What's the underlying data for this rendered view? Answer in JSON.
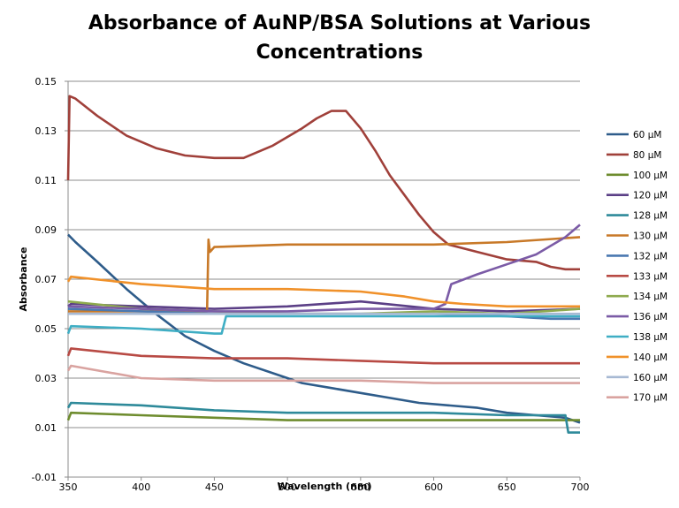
{
  "chart_data": {
    "type": "line",
    "title": [
      "Absorbance of AuNP/BSA Solutions at Various",
      "Concentrations"
    ],
    "xlabel": "Wavelength (nm)",
    "ylabel": "Absorbance",
    "xlim": [
      350,
      700
    ],
    "ylim": [
      -0.01,
      0.15
    ],
    "xticks": [
      350,
      400,
      450,
      500,
      550,
      600,
      650,
      700
    ],
    "yticks": [
      -0.01,
      0.01,
      0.03,
      0.05,
      0.07,
      0.09,
      0.11,
      0.13,
      0.15
    ],
    "ytick_labels": [
      "-0.01",
      "0.01",
      "0.03",
      "0.05",
      "0.07",
      "0.09",
      "0.11",
      "0.13",
      "0.15"
    ],
    "grid": "horizontal",
    "legend_position": "right",
    "series": [
      {
        "name": "60 µM",
        "color": "#2E5C8A",
        "x": [
          350,
          355,
          370,
          390,
          410,
          430,
          450,
          470,
          490,
          510,
          530,
          550,
          570,
          590,
          610,
          630,
          650,
          670,
          690,
          700
        ],
        "y": [
          0.088,
          0.085,
          0.077,
          0.066,
          0.056,
          0.047,
          0.041,
          0.036,
          0.032,
          0.028,
          0.026,
          0.024,
          0.022,
          0.02,
          0.019,
          0.018,
          0.016,
          0.015,
          0.014,
          0.012
        ]
      },
      {
        "name": "80 µM",
        "color": "#A0403A",
        "x": [
          350,
          351,
          355,
          370,
          390,
          410,
          430,
          450,
          470,
          490,
          510,
          520,
          530,
          540,
          550,
          560,
          570,
          580,
          590,
          600,
          610,
          630,
          650,
          670,
          680,
          690,
          700
        ],
        "y": [
          0.11,
          0.144,
          0.143,
          0.136,
          0.128,
          0.123,
          0.12,
          0.119,
          0.119,
          0.124,
          0.131,
          0.135,
          0.138,
          0.138,
          0.131,
          0.122,
          0.112,
          0.104,
          0.096,
          0.089,
          0.084,
          0.081,
          0.078,
          0.077,
          0.075,
          0.074,
          0.074
        ]
      },
      {
        "name": "100 µM",
        "color": "#6E8C2E",
        "x": [
          350,
          352,
          400,
          450,
          500,
          550,
          600,
          650,
          700
        ],
        "y": [
          0.013,
          0.016,
          0.015,
          0.014,
          0.013,
          0.013,
          0.013,
          0.013,
          0.013
        ]
      },
      {
        "name": "120 µM",
        "color": "#5B3F86",
        "x": [
          350,
          352,
          400,
          450,
          500,
          550,
          600,
          650,
          700
        ],
        "y": [
          0.059,
          0.06,
          0.059,
          0.058,
          0.059,
          0.061,
          0.058,
          0.057,
          0.058
        ]
      },
      {
        "name": "128 µM",
        "color": "#2E8A9A",
        "x": [
          350,
          352,
          400,
          450,
          500,
          550,
          600,
          650,
          680,
          690,
          692,
          700
        ],
        "y": [
          0.018,
          0.02,
          0.019,
          0.017,
          0.016,
          0.016,
          0.016,
          0.015,
          0.015,
          0.015,
          0.008,
          0.008
        ]
      },
      {
        "name": "130 µM",
        "color": "#C87928",
        "x": [
          350,
          400,
          440,
          445,
          446,
          447,
          450,
          500,
          550,
          600,
          650,
          700
        ],
        "y": [
          0.057,
          0.057,
          0.057,
          0.057,
          0.086,
          0.081,
          0.083,
          0.084,
          0.084,
          0.084,
          0.085,
          0.087
        ]
      },
      {
        "name": "132 µM",
        "color": "#4A78B0",
        "x": [
          350,
          400,
          450,
          500,
          550,
          600,
          650,
          680,
          690,
          700
        ],
        "y": [
          0.058,
          0.057,
          0.056,
          0.056,
          0.056,
          0.056,
          0.055,
          0.054,
          0.054,
          0.054
        ]
      },
      {
        "name": "133 µM",
        "color": "#B84A44",
        "x": [
          350,
          352,
          400,
          450,
          500,
          550,
          600,
          650,
          700
        ],
        "y": [
          0.039,
          0.042,
          0.039,
          0.038,
          0.038,
          0.037,
          0.036,
          0.036,
          0.036
        ]
      },
      {
        "name": "134 µM",
        "color": "#8EAA4E",
        "x": [
          350,
          400,
          450,
          500,
          550,
          600,
          650,
          700
        ],
        "y": [
          0.061,
          0.058,
          0.057,
          0.056,
          0.056,
          0.057,
          0.056,
          0.058
        ]
      },
      {
        "name": "136 µM",
        "color": "#7B5BA6",
        "x": [
          350,
          400,
          450,
          500,
          550,
          600,
          608,
          612,
          630,
          650,
          670,
          690,
          700
        ],
        "y": [
          0.059,
          0.058,
          0.057,
          0.057,
          0.058,
          0.058,
          0.06,
          0.068,
          0.072,
          0.076,
          0.08,
          0.087,
          0.092
        ]
      },
      {
        "name": "138 µM",
        "color": "#3FAEC4",
        "x": [
          350,
          352,
          400,
          450,
          455,
          458,
          500,
          550,
          600,
          650,
          700
        ],
        "y": [
          0.048,
          0.051,
          0.05,
          0.048,
          0.048,
          0.055,
          0.055,
          0.055,
          0.055,
          0.055,
          0.055
        ]
      },
      {
        "name": "140 µM",
        "color": "#F0912A",
        "x": [
          350,
          352,
          400,
          450,
          500,
          550,
          580,
          600,
          620,
          650,
          700
        ],
        "y": [
          0.069,
          0.071,
          0.068,
          0.066,
          0.066,
          0.065,
          0.063,
          0.061,
          0.06,
          0.059,
          0.059
        ]
      },
      {
        "name": "160 µM",
        "color": "#A7B9D3",
        "x": [
          350,
          400,
          450,
          500,
          550,
          600,
          650,
          700
        ],
        "y": [
          0.056,
          0.056,
          0.056,
          0.056,
          0.056,
          0.056,
          0.056,
          0.056
        ]
      },
      {
        "name": "170 µM",
        "color": "#D9A3A0",
        "x": [
          350,
          352,
          400,
          450,
          500,
          550,
          600,
          650,
          700
        ],
        "y": [
          0.033,
          0.035,
          0.03,
          0.029,
          0.029,
          0.029,
          0.028,
          0.028,
          0.028
        ]
      }
    ]
  }
}
